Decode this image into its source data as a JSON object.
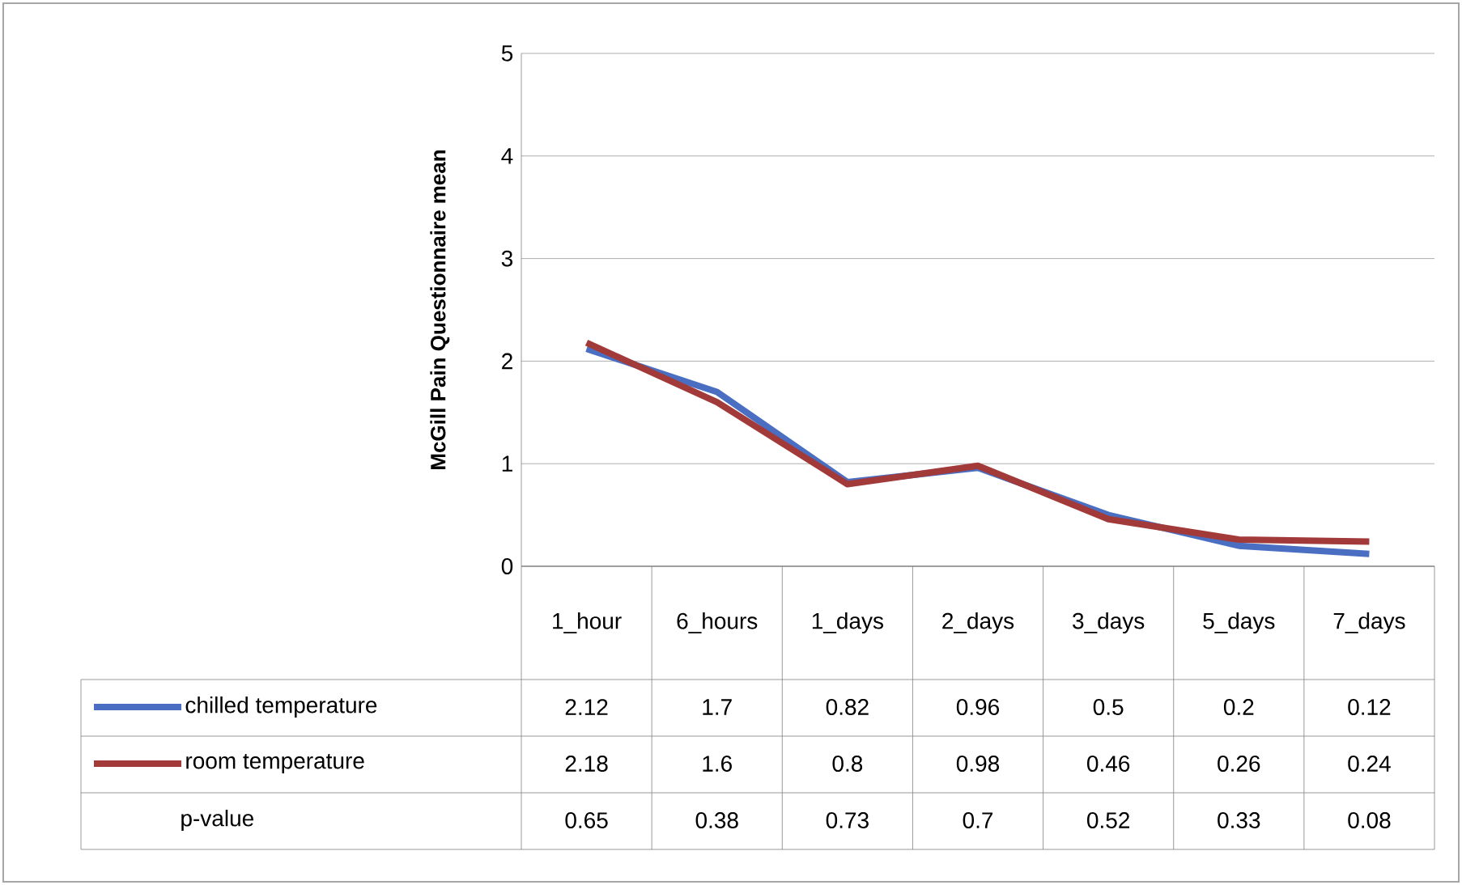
{
  "chart_data": {
    "type": "line",
    "ylabel": "McGill Pain Questionnaire mean",
    "categories": [
      "1_hour",
      "6_hours",
      "1_days",
      "2_days",
      "3_days",
      "5_days",
      "7_days"
    ],
    "series": [
      {
        "name": "chilled temperature",
        "color": "#4a6fc2",
        "values": [
          2.12,
          1.7,
          0.82,
          0.96,
          0.5,
          0.2,
          0.12
        ]
      },
      {
        "name": "room temperature",
        "color": "#a33a3a",
        "values": [
          2.18,
          1.6,
          0.8,
          0.98,
          0.46,
          0.26,
          0.24
        ]
      }
    ],
    "ylim": [
      0,
      5
    ],
    "yticks": [
      0,
      1,
      2,
      3,
      4,
      5
    ],
    "grid": "y",
    "legend": "bottom",
    "data_labels": true,
    "annotations": [
      "p-value",
      "0.65",
      "0.38",
      "0.73",
      "0.7",
      "0.52",
      "0.33",
      "0.08"
    ]
  }
}
